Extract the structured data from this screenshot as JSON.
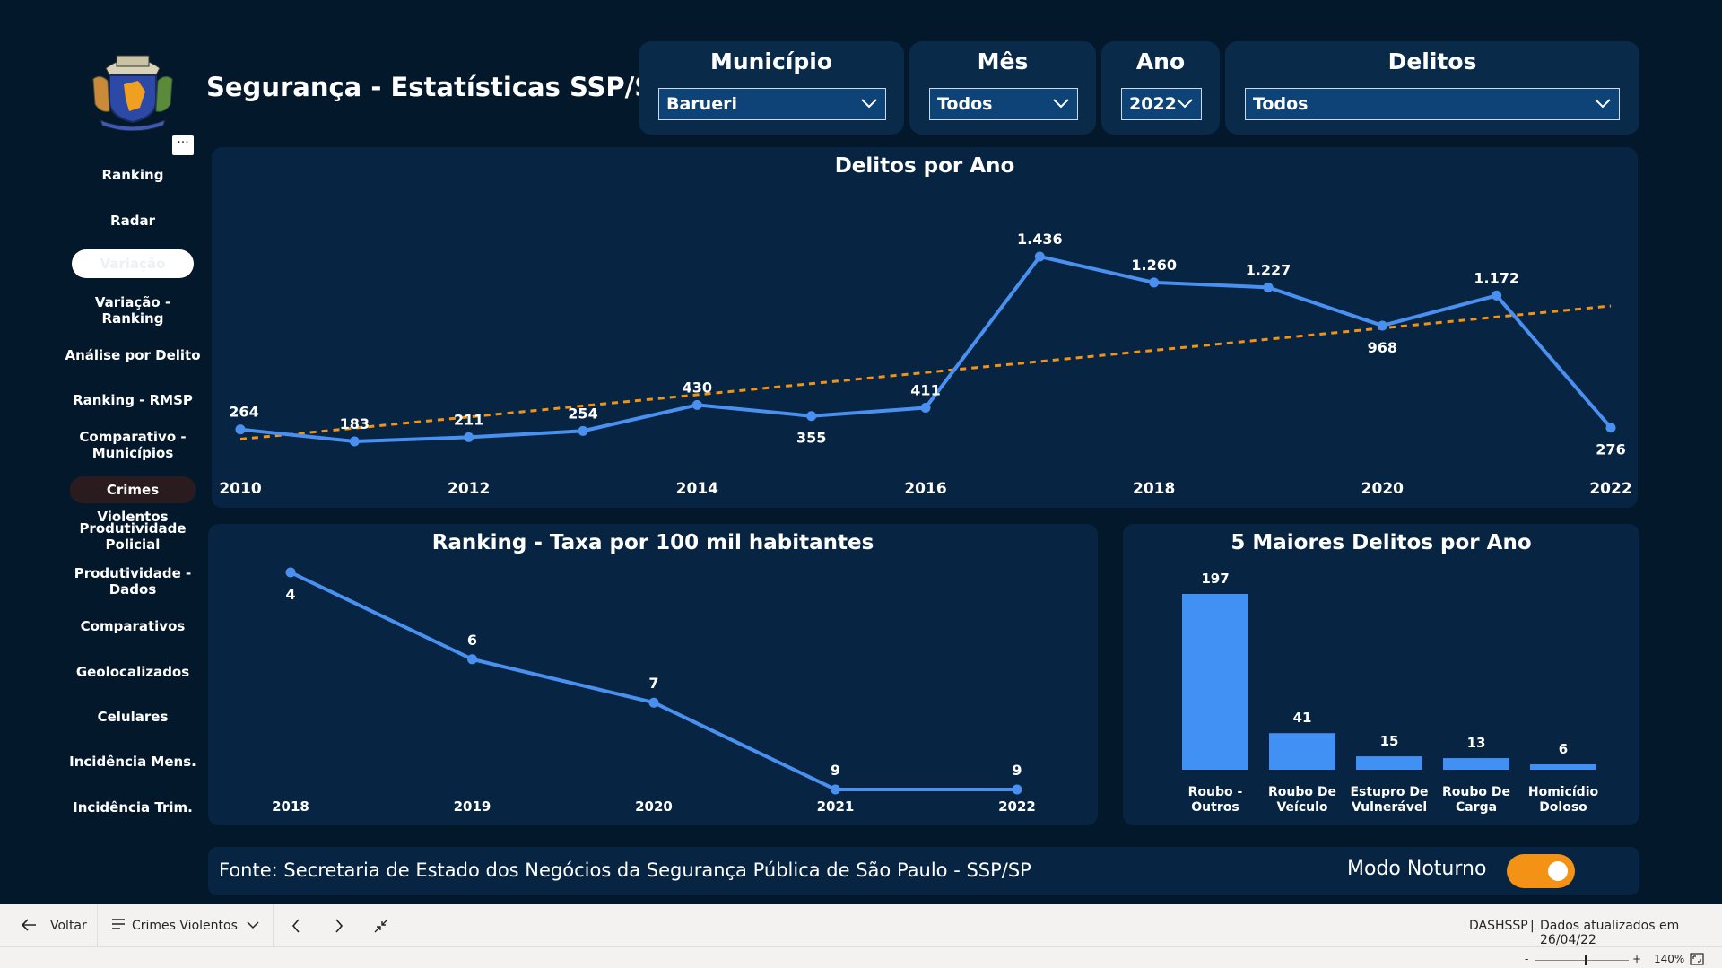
{
  "app": {
    "title": "Segurança - Estatísticas SSP/SP",
    "more_label": "···"
  },
  "filters": [
    {
      "label": "Município",
      "value": "Barueri"
    },
    {
      "label": "Mês",
      "value": "Todos"
    },
    {
      "label": "Ano",
      "value": "2022"
    },
    {
      "label": "Delitos",
      "value": "Todos"
    }
  ],
  "sidebar": {
    "items": [
      {
        "label": "Ranking"
      },
      {
        "label": "Radar"
      },
      {
        "label": "Variação"
      },
      {
        "label": "Variação - Ranking"
      },
      {
        "label": "Análise por Delito"
      },
      {
        "label": "Ranking - RMSP"
      },
      {
        "label": "Comparativo - Municípios"
      },
      {
        "label": "Crimes Violentos"
      },
      {
        "label": "Produtividade Policial"
      },
      {
        "label": "Produtividade - Dados"
      },
      {
        "label": "Comparativos"
      },
      {
        "label": "Geolocalizados"
      },
      {
        "label": "Celulares"
      },
      {
        "label": "Incidência Mens."
      },
      {
        "label": "Incidência Trim."
      }
    ]
  },
  "chart_data": [
    {
      "type": "line",
      "title": "Delitos por Ano",
      "x": [
        2010,
        2011,
        2012,
        2013,
        2014,
        2015,
        2016,
        2017,
        2018,
        2019,
        2020,
        2021,
        2022
      ],
      "x_tick_labels": [
        "2010",
        "2012",
        "2014",
        "2016",
        "2018",
        "2020",
        "2022"
      ],
      "series": [
        {
          "values": [
            264,
            183,
            211,
            254,
            430,
            355,
            411,
            1436,
            1260,
            1227,
            968,
            1172,
            276
          ],
          "labels": [
            "264",
            "183",
            "211",
            "254",
            "430",
            "355",
            "411",
            "1.436",
            "1.260",
            "1.227",
            "968",
            "1.172",
            "276"
          ],
          "color": "#4a90f0"
        }
      ],
      "trendline": {
        "color": "#f39214",
        "style": "dashed"
      }
    },
    {
      "type": "line",
      "title": "Ranking - Taxa por 100 mil habitantes",
      "x": [
        "2018",
        "2019",
        "2020",
        "2021",
        "2022"
      ],
      "series": [
        {
          "values": [
            4,
            6,
            7,
            9,
            9
          ],
          "color": "#4a90f0"
        }
      ]
    },
    {
      "type": "bar",
      "title": "5 Maiores Delitos por Ano",
      "categories": [
        [
          "Roubo -",
          "Outros"
        ],
        [
          "Roubo De",
          "Veículo"
        ],
        [
          "Estupro De",
          "Vulnerável"
        ],
        [
          "Roubo De",
          "Carga"
        ],
        [
          "Homicídio",
          "Doloso"
        ]
      ],
      "values": [
        197,
        41,
        15,
        13,
        6
      ],
      "color": "#4191f4"
    }
  ],
  "footer": {
    "source": "Fonte: Secretaria de Estado dos Negócios da Segurança Pública de São Paulo - SSP/SP",
    "toggle_label": "Modo Noturno",
    "toggle_on": true
  },
  "bottom_bar": {
    "back_label": "Voltar",
    "page_label": "Crimes Violentos",
    "report_name": "DASHSSP",
    "updated": "Dados atualizados em 26/04/22",
    "zoom_minus": "-",
    "zoom_plus": "+",
    "zoom": "140%"
  },
  "colors": {
    "background": "#04182c",
    "panel": "#072542",
    "accent": "#4a90f0",
    "trend": "#f39214"
  }
}
